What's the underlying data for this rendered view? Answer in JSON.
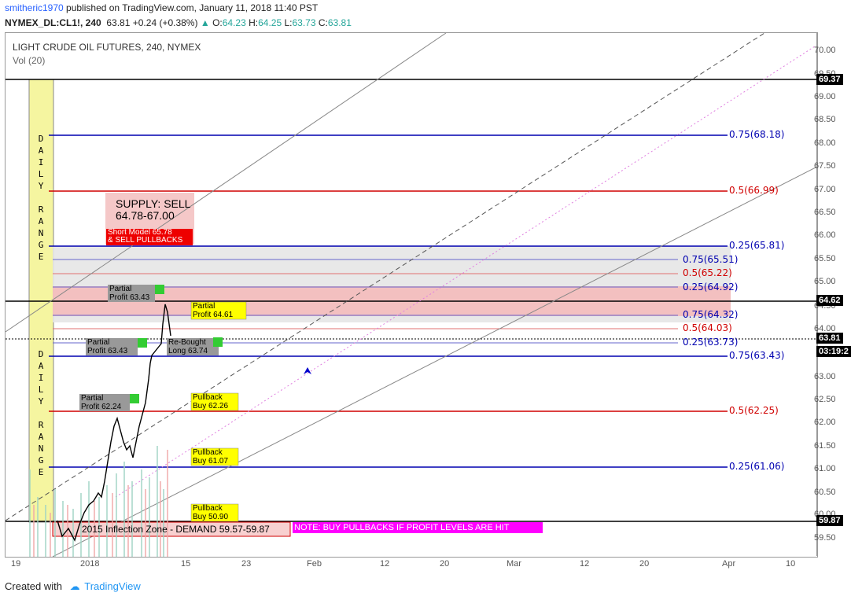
{
  "header": {
    "user": "smitheric1970",
    "published": "published on TradingView.com, January 11, 2018 11:40 PST",
    "symbol": "NYMEX_DL:CL1!, 240",
    "last": "63.81",
    "change": "+0.24 (+0.38%)",
    "o_label": "O:",
    "o_val": "64.23",
    "h_label": "H:",
    "h_val": "64.25",
    "l_label": "L:",
    "l_val": "63.73",
    "c_label": "C:",
    "c_val": "63.81"
  },
  "chart": {
    "title": "LIGHT CRUDE OIL FUTURES, 240, NYMEX",
    "vol": "Vol (20)",
    "daily_range_1": "DAILY RANGE",
    "daily_range_2": "DAILY RANGE",
    "supply_title": "SUPPLY: SELL",
    "supply_range": "64.78-67.00",
    "short_model_1": "Short Model 65.78",
    "short_model_2": "& SELL PULLBACKS",
    "inflection": "2015 Inflection Zone - DEMAND 59.57-59.87",
    "note": "NOTE: BUY PULLBACKS IF PROFIT LEVELS ARE HIT",
    "labels": {
      "pp1": "Partial",
      "pp1b": "Profit 63.43",
      "pp2": "Partial",
      "pp2b": "Profit 63.43",
      "pp3": "Partial",
      "pp3b": "Profit 62.24",
      "pb1": "Partial",
      "pb1b": "Profit 64.61",
      "rb": "Re-Bought",
      "rbb": "Long 63.74",
      "pull1": "Pullback",
      "pull1b": "Buy 62.26",
      "pull2": "Pullback",
      "pull2b": "Buy 61.07",
      "pull3": "Pullback",
      "pull3b": "Buy 50.90"
    },
    "fib_labels": [
      {
        "text": "0.75(68.18)",
        "color": "#0000b0"
      },
      {
        "text": "0.5(66.99)",
        "color": "#d00000"
      },
      {
        "text": "0.25(65.81)",
        "color": "#0000b0"
      },
      {
        "text": "0.75(65.51)",
        "color": "#0000b0"
      },
      {
        "text": "0.5(65.22)",
        "color": "#d00000"
      },
      {
        "text": "0.25(64.92)",
        "color": "#0000b0"
      },
      {
        "text": "0.75(64.32)",
        "color": "#0000b0"
      },
      {
        "text": "0.5(64.03)",
        "color": "#d00000"
      },
      {
        "text": "0.25(63.73)",
        "color": "#0000b0"
      },
      {
        "text": "0.75(63.43)",
        "color": "#0000b0"
      },
      {
        "text": "0.5(62.25)",
        "color": "#d00000"
      },
      {
        "text": "0.25(61.06)",
        "color": "#0000b0"
      }
    ]
  },
  "y_axis": {
    "ticks": [
      "70.00",
      "69.50",
      "69.00",
      "68.50",
      "68.00",
      "67.50",
      "67.00",
      "66.50",
      "66.00",
      "65.50",
      "65.00",
      "64.50",
      "64.00",
      "63.00",
      "62.50",
      "62.00",
      "61.50",
      "61.00",
      "60.50",
      "60.00",
      "59.50"
    ],
    "tag_top": "69.37",
    "tag_mid": "64.62",
    "tag_last": "63.81",
    "tag_time": "03:19:2",
    "tag_low": "59.87"
  },
  "x_axis": {
    "ticks": [
      "19",
      "2018",
      "15",
      "23",
      "Feb",
      "12",
      "20",
      "Mar",
      "12",
      "20",
      "Apr",
      "10"
    ]
  },
  "footer": {
    "created": "Created with",
    "brand": "TradingView"
  },
  "colors": {
    "blue": "#0000b0",
    "red": "#d00000",
    "yellow": "#ffff00",
    "pink": "#f5bcbc"
  }
}
